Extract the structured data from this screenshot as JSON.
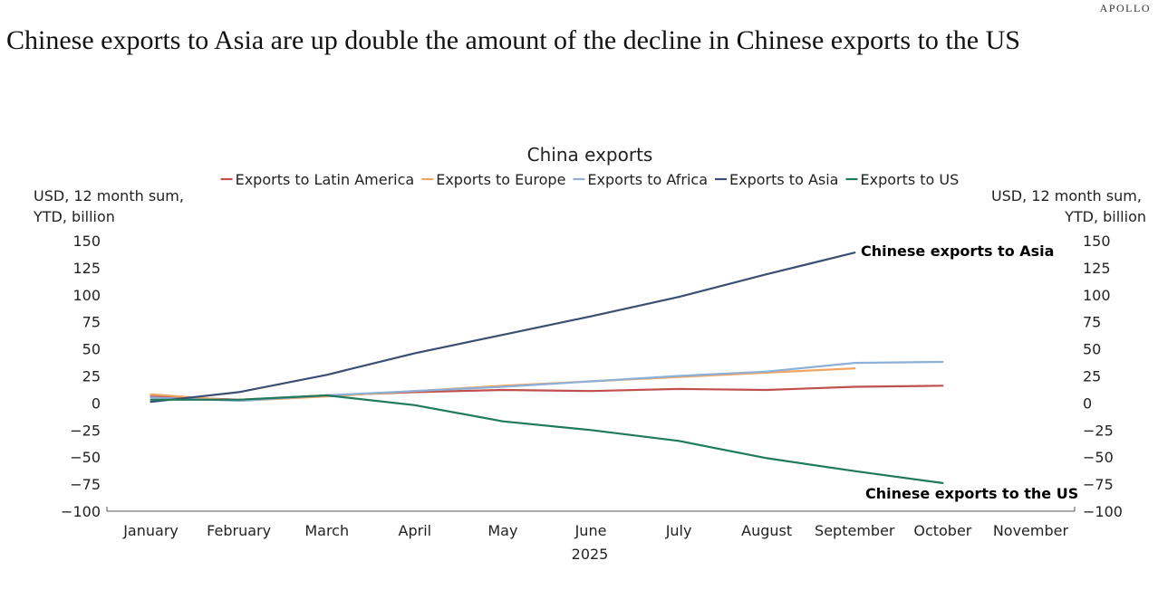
{
  "brand": "APOLLO",
  "headline": "Chinese exports to Asia are up double the amount of the decline in Chinese exports to the US",
  "chart_data": {
    "type": "line",
    "title": "China exports",
    "xlabel": "2025",
    "ylabel_left": [
      "USD, 12 month sum,",
      "YTD, billion"
    ],
    "ylabel_right": [
      "USD, 12 month sum,",
      "YTD, billion"
    ],
    "categories": [
      "January",
      "February",
      "March",
      "April",
      "May",
      "June",
      "July",
      "August",
      "September",
      "October",
      "November"
    ],
    "ylim": [
      -100,
      150
    ],
    "yticks": [
      150,
      125,
      100,
      75,
      50,
      25,
      0,
      -25,
      -50,
      -75,
      -100
    ],
    "series": [
      {
        "name": "Exports to Latin America",
        "color": "#c0504d",
        "values": [
          6,
          3,
          7,
          10,
          12,
          11,
          13,
          12,
          15,
          16,
          null
        ]
      },
      {
        "name": "Exports to Europe",
        "color": "#f0a560",
        "values": [
          8,
          2,
          6,
          11,
          16,
          20,
          24,
          28,
          32,
          null,
          null
        ]
      },
      {
        "name": "Exports to Africa",
        "color": "#8db0d8",
        "values": [
          5,
          2,
          7,
          11,
          15,
          20,
          25,
          29,
          37,
          38,
          null
        ]
      },
      {
        "name": "Exports to Asia",
        "color": "#3b4f72",
        "values": [
          1,
          10,
          26,
          46,
          63,
          80,
          98,
          119,
          139,
          null,
          null
        ]
      },
      {
        "name": "Exports to US",
        "color": "#1f7a5c",
        "values": [
          3,
          3,
          7,
          -2,
          -17,
          -25,
          -35,
          -51,
          -63,
          -74,
          null
        ]
      }
    ],
    "annotations": [
      {
        "text": "Chinese exports to Asia",
        "series": "Exports to Asia"
      },
      {
        "text": "Chinese exports to the US",
        "series": "Exports to US"
      }
    ]
  }
}
